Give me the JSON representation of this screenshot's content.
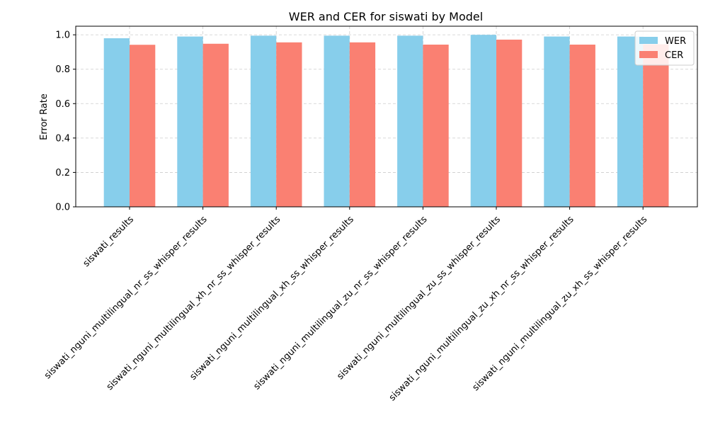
{
  "chart_data": {
    "type": "bar",
    "title": "WER and CER for siswati by Model",
    "xlabel": "",
    "ylabel": "Error Rate",
    "ylim": [
      0,
      1.05
    ],
    "yticks": [
      0.0,
      0.2,
      0.4,
      0.6,
      0.8,
      1.0
    ],
    "ytick_labels": [
      "0.0",
      "0.2",
      "0.4",
      "0.6",
      "0.8",
      "1.0"
    ],
    "grid": true,
    "legend_position": "top-right",
    "categories": [
      "siswati_results",
      "siswati_nguni_multilingual_nr_ss_whisper_results",
      "siswati_nguni_multilingual_xh_nr_ss_whisper_results",
      "siswati_nguni_multilingual_xh_ss_whisper_results",
      "siswati_nguni_multilingual_zu_nr_ss_whisper_results",
      "siswati_nguni_multilingual_zu_ss_whisper_results",
      "siswati_nguni_multilingual_zu_xh_nr_ss_whisper_results",
      "siswati_nguni_multilingual_zu_xh_ss_whisper_results"
    ],
    "series": [
      {
        "name": "WER",
        "color": "#87ceeb",
        "values": [
          0.98,
          0.99,
          0.995,
          0.995,
          0.995,
          1.0,
          0.99,
          0.99
        ]
      },
      {
        "name": "CER",
        "color": "#fa8072",
        "values": [
          0.942,
          0.948,
          0.956,
          0.956,
          0.943,
          0.972,
          0.943,
          0.945
        ]
      }
    ]
  }
}
